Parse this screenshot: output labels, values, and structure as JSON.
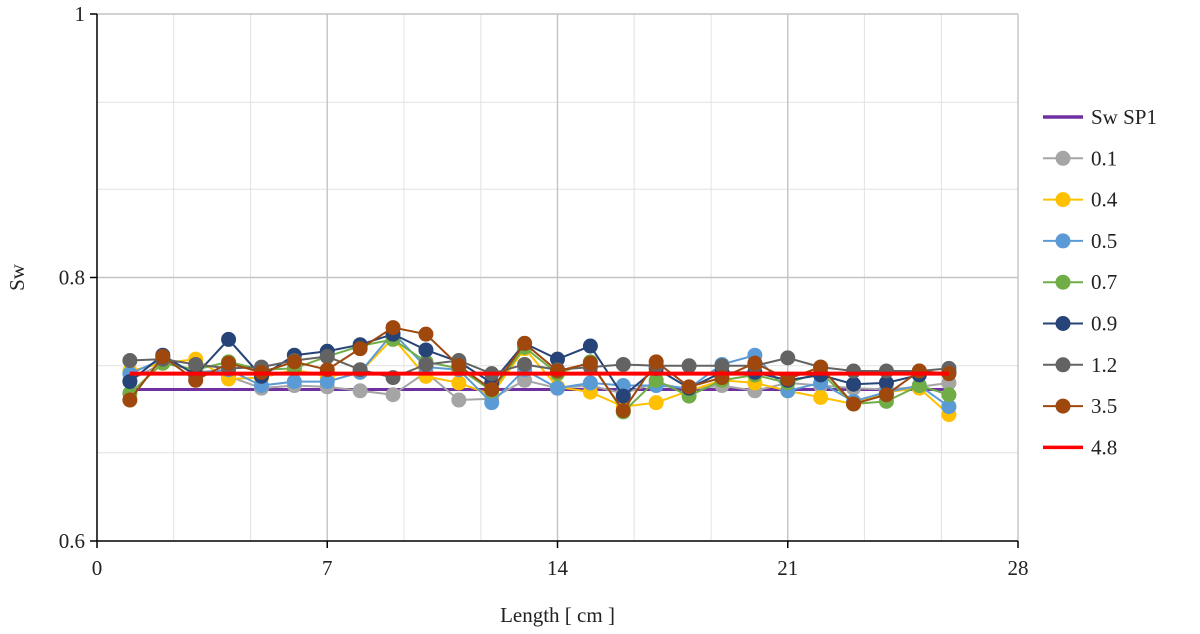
{
  "chart_data": {
    "type": "line",
    "title": "",
    "xlabel": "Length [ cm ]",
    "ylabel": "Sw",
    "xlim": [
      0,
      28
    ],
    "ylim": [
      0.6,
      1.0
    ],
    "x_ticks": [
      0,
      7,
      14,
      21,
      28
    ],
    "x_tick_labels": [
      "0",
      "7",
      "14",
      "21",
      "28"
    ],
    "y_ticks": [
      0.6,
      0.8,
      1.0
    ],
    "y_tick_labels": [
      "0.6",
      "0.8",
      "1"
    ],
    "x_minor_grid": [
      2.33,
      4.67,
      9.33,
      11.67,
      16.33,
      18.67,
      23.33,
      25.67
    ],
    "y_minor_grid": [
      0.667,
      0.733,
      0.867,
      0.933
    ],
    "grid": true,
    "legend_position": "right",
    "x": [
      1,
      2,
      3,
      4,
      5,
      6,
      7,
      8,
      9,
      10,
      11,
      12,
      13,
      14,
      15,
      16,
      17,
      18,
      19,
      20,
      21,
      22,
      23,
      24,
      25,
      25.9
    ],
    "series": [
      {
        "name": "Sw SP1",
        "color": "#7030A0",
        "markers": false,
        "points": [
          [
            1,
            0.715
          ],
          [
            25.9,
            0.715
          ]
        ]
      },
      {
        "name": "0.1",
        "color": "#A5A5A5",
        "markers": true,
        "values": [
          0.722,
          0.735,
          0.73,
          0.725,
          0.716,
          0.718,
          0.717,
          0.714,
          0.711,
          0.728,
          0.707,
          0.708,
          0.722,
          0.716,
          0.718,
          0.712,
          0.72,
          0.715,
          0.718,
          0.714,
          0.72,
          0.718,
          0.716,
          0.715,
          0.717,
          0.72
        ]
      },
      {
        "name": "0.4",
        "color": "#FFC000",
        "markers": true,
        "values": [
          0.729,
          0.735,
          0.738,
          0.723,
          0.724,
          0.73,
          0.725,
          0.728,
          0.754,
          0.725,
          0.72,
          0.711,
          0.746,
          0.717,
          0.713,
          0.702,
          0.705,
          0.714,
          0.722,
          0.72,
          0.714,
          0.709,
          0.704,
          0.713,
          0.716,
          0.696
        ]
      },
      {
        "name": "0.5",
        "color": "#5B9BD5",
        "markers": true,
        "values": [
          0.727,
          0.738,
          0.728,
          0.73,
          0.718,
          0.721,
          0.721,
          0.728,
          0.758,
          0.732,
          0.73,
          0.705,
          0.73,
          0.716,
          0.72,
          0.718,
          0.718,
          0.716,
          0.734,
          0.741,
          0.714,
          0.72,
          0.706,
          0.713,
          0.718,
          0.702
        ]
      },
      {
        "name": "0.7",
        "color": "#70AD47",
        "markers": true,
        "values": [
          0.712,
          0.735,
          0.73,
          0.736,
          0.73,
          0.731,
          0.74,
          0.748,
          0.753,
          0.736,
          0.731,
          0.714,
          0.747,
          0.727,
          0.736,
          0.698,
          0.722,
          0.71,
          0.722,
          0.726,
          0.72,
          0.728,
          0.704,
          0.706,
          0.718,
          0.711
        ]
      },
      {
        "name": "0.9",
        "color": "#264478",
        "markers": true,
        "values": [
          0.721,
          0.741,
          0.726,
          0.753,
          0.725,
          0.741,
          0.744,
          0.749,
          0.757,
          0.745,
          0.736,
          0.72,
          0.75,
          0.738,
          0.748,
          0.71,
          0.731,
          0.716,
          0.728,
          0.728,
          0.722,
          0.726,
          0.719,
          0.72,
          0.726,
          0.728
        ]
      },
      {
        "name": "1.2",
        "color": "#636363",
        "markers": true,
        "values": [
          0.737,
          0.738,
          0.734,
          0.731,
          0.732,
          0.737,
          0.74,
          0.73,
          0.724,
          0.734,
          0.737,
          0.727,
          0.734,
          0.73,
          0.732,
          0.734,
          0.733,
          0.733,
          0.733,
          0.733,
          0.739,
          0.732,
          0.729,
          0.729,
          0.729,
          0.731
        ]
      },
      {
        "name": "3.5",
        "color": "#9E480E",
        "markers": true,
        "values": [
          0.707,
          0.74,
          0.722,
          0.735,
          0.728,
          0.736,
          0.73,
          0.746,
          0.762,
          0.757,
          0.733,
          0.715,
          0.75,
          0.729,
          0.735,
          0.699,
          0.736,
          0.717,
          0.724,
          0.735,
          0.723,
          0.732,
          0.704,
          0.711,
          0.729,
          0.727
        ]
      },
      {
        "name": "4.8",
        "color": "#FF0000",
        "markers": false,
        "points": [
          [
            1,
            0.727
          ],
          [
            25.9,
            0.727
          ]
        ]
      }
    ]
  }
}
